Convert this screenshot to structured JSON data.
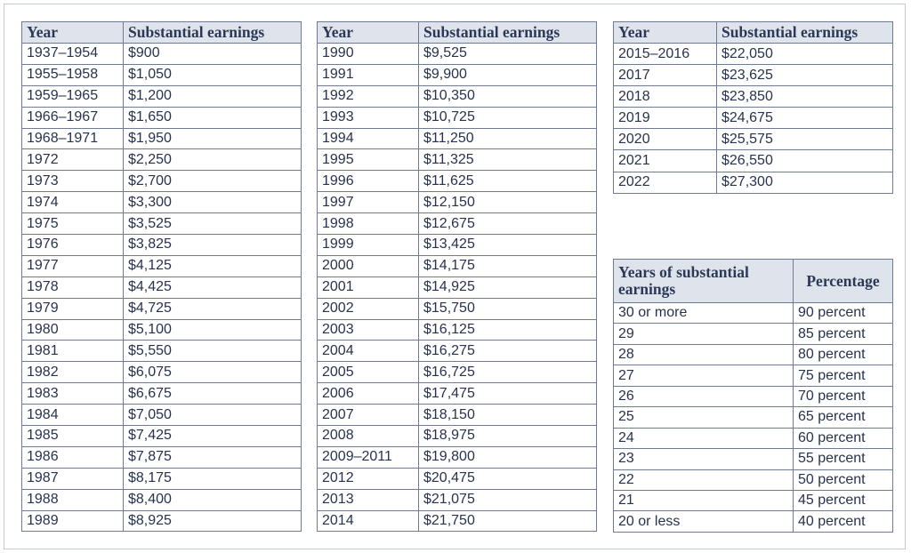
{
  "tables": [
    {
      "header": [
        "Year",
        "Substantial earnings"
      ],
      "rows": [
        [
          "1937–1954",
          "$900"
        ],
        [
          "1955–1958",
          "$1,050"
        ],
        [
          "1959–1965",
          "$1,200"
        ],
        [
          "1966–1967",
          "$1,650"
        ],
        [
          "1968–1971",
          "$1,950"
        ],
        [
          "1972",
          "$2,250"
        ],
        [
          "1973",
          "$2,700"
        ],
        [
          "1974",
          "$3,300"
        ],
        [
          "1975",
          "$3,525"
        ],
        [
          "1976",
          "$3,825"
        ],
        [
          "1977",
          "$4,125"
        ],
        [
          "1978",
          "$4,425"
        ],
        [
          "1979",
          "$4,725"
        ],
        [
          "1980",
          "$5,100"
        ],
        [
          "1981",
          "$5,550"
        ],
        [
          "1982",
          "$6,075"
        ],
        [
          "1983",
          "$6,675"
        ],
        [
          "1984",
          "$7,050"
        ],
        [
          "1985",
          "$7,425"
        ],
        [
          "1986",
          "$7,875"
        ],
        [
          "1987",
          "$8,175"
        ],
        [
          "1988",
          "$8,400"
        ],
        [
          "1989",
          "$8,925"
        ]
      ]
    },
    {
      "header": [
        "Year",
        "Substantial earnings"
      ],
      "rows": [
        [
          "1990",
          "$9,525"
        ],
        [
          "1991",
          "$9,900"
        ],
        [
          "1992",
          "$10,350"
        ],
        [
          "1993",
          "$10,725"
        ],
        [
          "1994",
          "$11,250"
        ],
        [
          "1995",
          "$11,325"
        ],
        [
          "1996",
          "$11,625"
        ],
        [
          "1997",
          "$12,150"
        ],
        [
          "1998",
          "$12,675"
        ],
        [
          "1999",
          "$13,425"
        ],
        [
          "2000",
          "$14,175"
        ],
        [
          "2001",
          "$14,925"
        ],
        [
          "2002",
          "$15,750"
        ],
        [
          "2003",
          "$16,125"
        ],
        [
          "2004",
          "$16,275"
        ],
        [
          "2005",
          "$16,725"
        ],
        [
          "2006",
          "$17,475"
        ],
        [
          "2007",
          "$18,150"
        ],
        [
          "2008",
          "$18,975"
        ],
        [
          "2009–2011",
          "$19,800"
        ],
        [
          "2012",
          "$20,475"
        ],
        [
          "2013",
          "$21,075"
        ],
        [
          "2014",
          "$21,750"
        ]
      ]
    },
    {
      "header": [
        "Year",
        "Substantial earnings"
      ],
      "rows": [
        [
          "2015–2016",
          "$22,050"
        ],
        [
          "2017",
          "$23,625"
        ],
        [
          "2018",
          "$23,850"
        ],
        [
          "2019",
          "$24,675"
        ],
        [
          "2020",
          "$25,575"
        ],
        [
          "2021",
          "$26,550"
        ],
        [
          "2022",
          "$27,300"
        ]
      ]
    },
    {
      "header": [
        "Years of substantial earnings",
        "Percentage"
      ],
      "rows": [
        [
          "30 or more",
          "90 percent"
        ],
        [
          "29",
          "85 percent"
        ],
        [
          "28",
          "80 percent"
        ],
        [
          "27",
          "75 percent"
        ],
        [
          "26",
          "70 percent"
        ],
        [
          "25",
          "65 percent"
        ],
        [
          "24",
          "60 percent"
        ],
        [
          "23",
          "55 percent"
        ],
        [
          "22",
          "50 percent"
        ],
        [
          "21",
          "45 percent"
        ],
        [
          "20 or less",
          "40 percent"
        ]
      ]
    }
  ]
}
